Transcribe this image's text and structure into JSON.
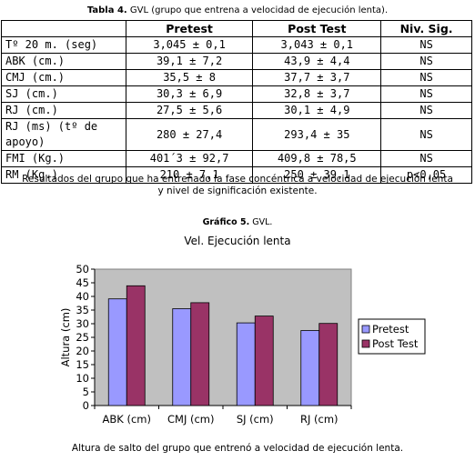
{
  "table": {
    "caption_bold": "Tabla 4.",
    "caption_rest": " GVL (grupo que entrena a velocidad de ejecución lenta).",
    "headers": [
      "",
      "Pretest",
      "Post Test",
      "Niv. Sig."
    ],
    "rows": [
      {
        "label": "Tº 20 m. (seg)",
        "pre": "3,045 ± 0,1",
        "post": "3,043 ± 0,1",
        "sig": "NS"
      },
      {
        "label": "ABK (cm.)",
        "pre": "39,1 ± 7,2",
        "post": "43,9 ± 4,4",
        "sig": "NS"
      },
      {
        "label": "CMJ (cm.)",
        "pre": "35,5 ± 8",
        "post": "37,7 ± 3,7",
        "sig": "NS"
      },
      {
        "label": "SJ (cm.)",
        "pre": "30,3 ± 6,9",
        "post": "32,8 ± 3,7",
        "sig": "NS"
      },
      {
        "label": "RJ (cm.)",
        "pre": "27,5 ± 5,6",
        "post": "30,1 ± 4,9",
        "sig": "NS"
      },
      {
        "label": "RJ (ms) (tº de apoyo)",
        "pre": "280 ± 27,4",
        "post": "293,4 ± 35",
        "sig": "NS"
      },
      {
        "label": "FMI (Kg.)",
        "pre": "401´3 ± 92,7",
        "post": "409,8 ± 78,5",
        "sig": "NS"
      },
      {
        "label": "RM (Kg.)",
        "pre": "210 ± 7,1",
        "post": "250 ± 39,1",
        "sig": "p<0,05"
      }
    ],
    "note_line1": "Resultados del grupo que ha entrenado la fase concéntrica a  velocidad de ejecución lenta",
    "note_line2": "y nivel de significación existente."
  },
  "graphic": {
    "caption_bold": "Gráfico 5.",
    "caption_rest": " GVL.",
    "bottom_caption": "Altura de salto del grupo que entrenó a velocidad de ejecución lenta."
  },
  "chart_data": {
    "type": "bar",
    "title": "Vel. Ejecución lenta",
    "ylabel": "Altura (cm)",
    "xlabel": "",
    "categories": [
      "ABK (cm)",
      "CMJ (cm)",
      "SJ (cm)",
      "RJ (cm)"
    ],
    "series": [
      {
        "name": "Pretest",
        "values": [
          39.1,
          35.5,
          30.3,
          27.5
        ],
        "color": "#9999ff"
      },
      {
        "name": "Post Test",
        "values": [
          43.9,
          37.7,
          32.8,
          30.1
        ],
        "color": "#993366"
      }
    ],
    "ylim": [
      0,
      50
    ],
    "yticks": [
      "0",
      "5",
      "10",
      "15",
      "20",
      "25",
      "30",
      "35",
      "40",
      "45",
      "50"
    ],
    "plot_bg": "#c0c0c0",
    "grid": false,
    "legend": "right"
  }
}
